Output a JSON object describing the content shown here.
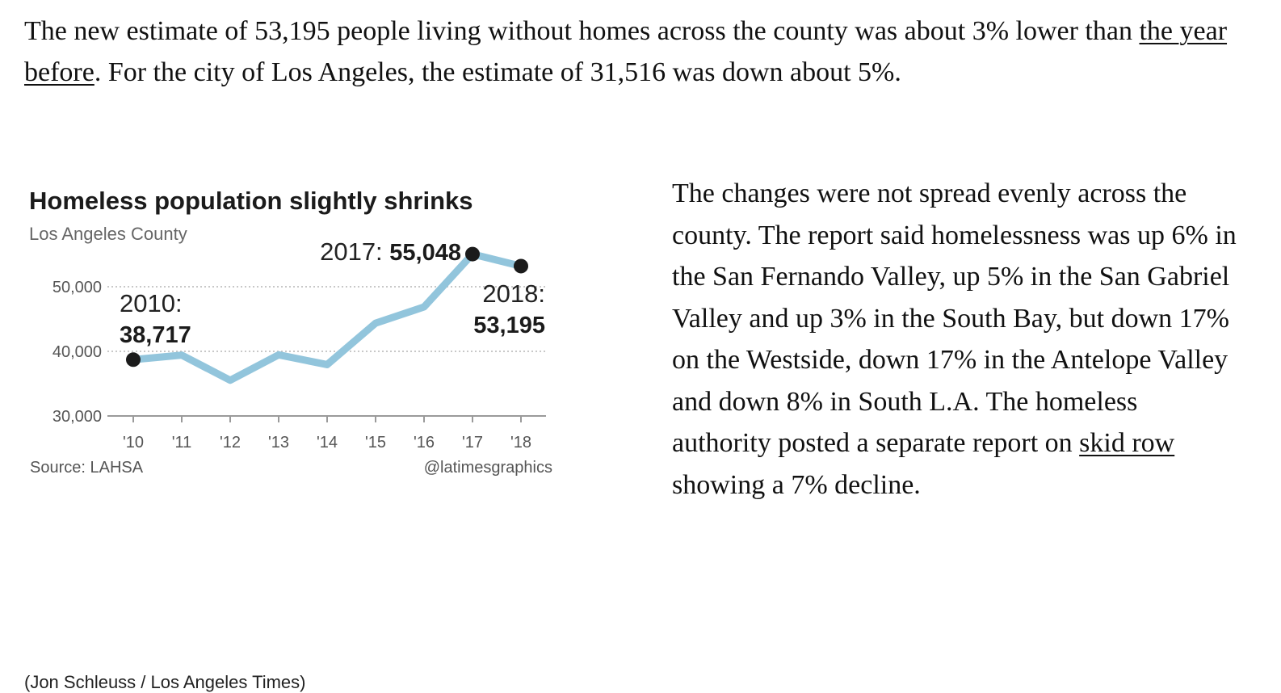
{
  "article": {
    "intro": {
      "before_link": "The new estimate of 53,195 people living without homes across the county was about 3% lower than ",
      "link": "the year before",
      "after_link": ". For the city of Los Angeles, the estimate of 31,516 was down about 5%."
    },
    "right": {
      "before_link": "The changes were not spread evenly across the county. The report said homelessness was up 6% in the San Fernando Valley, up 5% in the San Gabriel Valley and up 3% in the South Bay, but down 17% on the Westside, down 17% in the Antelope Valley and down 8% in South L.A. The homeless authority posted a separate report on ",
      "link": "skid row",
      "after_link": " showing a 7% decline."
    },
    "caption": "(Jon Schleuss / Los Angeles Times)"
  },
  "colors": {
    "line": "#92c5dc",
    "dot": "#1b1b1b",
    "grid": "#b5b5b5",
    "axis_text": "#555555",
    "title": "#1b1b1b"
  },
  "chart_data": {
    "type": "line",
    "title": "Homeless population slightly shrinks",
    "subtitle": "Los Angeles County",
    "source": "Source: LAHSA",
    "credit": "@latimesgraphics",
    "x": [
      "'10",
      "'11",
      "'12",
      "'13",
      "'14",
      "'15",
      "'16",
      "'17",
      "'18"
    ],
    "series": [
      {
        "values": [
          38717,
          39414,
          35524,
          39461,
          37943,
          44359,
          46874,
          55048,
          53195
        ]
      }
    ],
    "ylim": [
      30000,
      55000
    ],
    "yticks": [
      {
        "value": 30000,
        "label": "30,000"
      },
      {
        "value": 40000,
        "label": "40,000"
      },
      {
        "value": 50000,
        "label": "50,000"
      }
    ],
    "grid": true,
    "annotations": [
      {
        "year_label": "2010:",
        "value_label": "38,717",
        "point_index": 0
      },
      {
        "year_label": "2017:",
        "value_label": "55,048",
        "point_index": 7
      },
      {
        "year_label": "2018:",
        "value_label": "53,195",
        "point_index": 8
      }
    ]
  }
}
